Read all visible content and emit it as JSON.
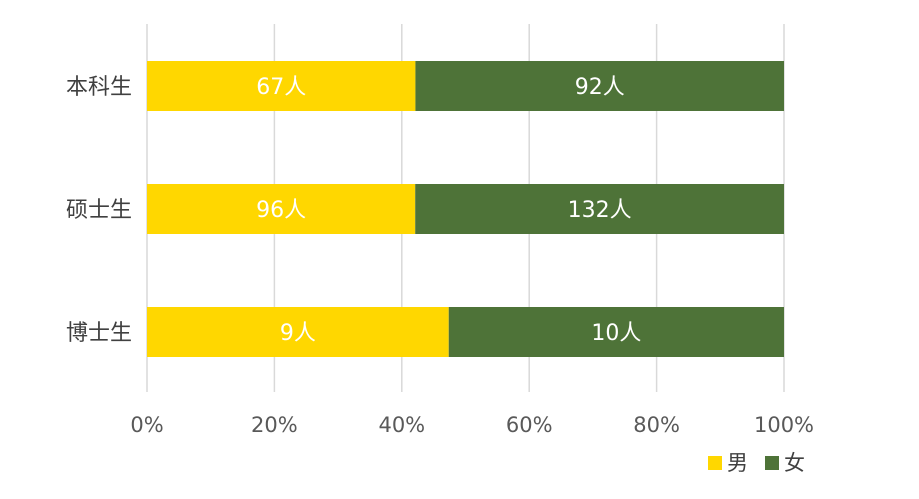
{
  "chart_data": {
    "type": "stacked-bar-horizontal-100",
    "categories": [
      "本科生",
      "硕士生",
      "博士生"
    ],
    "series": [
      {
        "name": "男",
        "values": [
          67,
          96,
          9
        ],
        "labels": [
          "67人",
          "96人",
          "9人"
        ],
        "color": "#FFD700"
      },
      {
        "name": "女",
        "values": [
          92,
          132,
          10
        ],
        "labels": [
          "92人",
          "132人",
          "10人"
        ],
        "color": "#4E7338"
      }
    ],
    "x_ticks": [
      "0%",
      "20%",
      "40%",
      "60%",
      "80%",
      "100%"
    ],
    "xlim": [
      0,
      100
    ],
    "grid": true,
    "legend_position": "bottom-right"
  }
}
